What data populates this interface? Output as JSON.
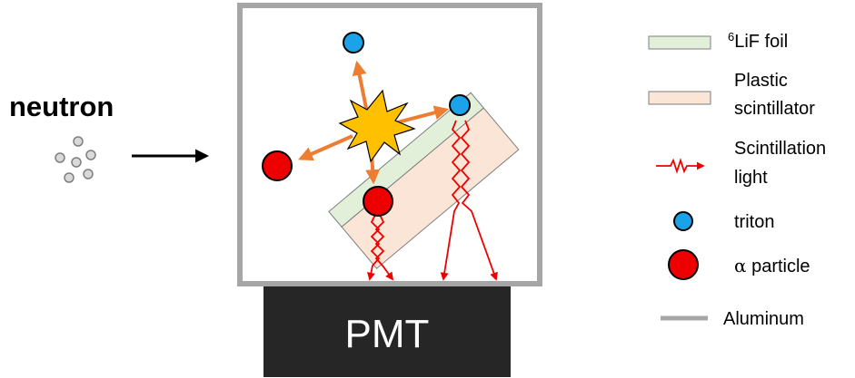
{
  "neutron_label": "neutron",
  "pmt_label": "PMT",
  "legend": {
    "lif_foil": {
      "sup": "6",
      "text": "LiF foil"
    },
    "plastic": {
      "line1": "Plastic",
      "line2": "scintillator"
    },
    "scint_light": {
      "line1": "Scintillation",
      "line2": "light"
    },
    "triton": "triton",
    "alpha": {
      "symbol": "α",
      "text": " particle"
    },
    "aluminum": "Aluminum"
  },
  "colors": {
    "aluminum": "#a6a6a6",
    "foil_fill": "#e2f0d9",
    "plastic_fill": "#fbe5d6",
    "triton": "#1aa3e8",
    "alpha": "#ee0000",
    "arrow": "#ed7d31",
    "star": "#ffc000",
    "light": "#ee0000",
    "pmt": "#262626"
  }
}
